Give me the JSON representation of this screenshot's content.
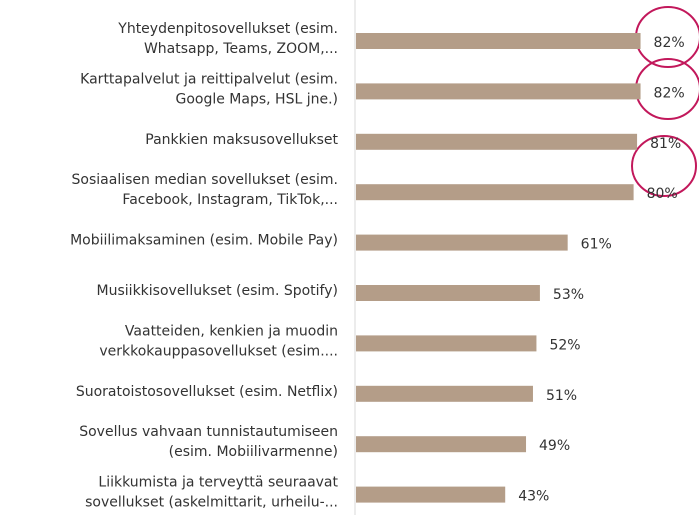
{
  "chart_data": {
    "type": "bar",
    "orientation": "horizontal",
    "color": "#b49d88",
    "categories": [
      [
        "Yhteydenpitosovellukset (esim.",
        "Whatsapp, Teams, ZOOM,..."
      ],
      [
        "Karttapalvelut ja reittipalvelut (esim.",
        "Google Maps, HSL jne.)"
      ],
      [
        "Pankkien maksusovellukset"
      ],
      [
        "Sosiaalisen median sovellukset (esim.",
        "Facebook, Instagram, TikTok,..."
      ],
      [
        "Mobiilimaksaminen (esim. Mobile Pay)"
      ],
      [
        "Musiikkisovellukset (esim. Spotify)"
      ],
      [
        "Vaatteiden, kenkien ja muodin",
        "verkkokauppasovellukset (esim...."
      ],
      [
        "Suoratoistosovellukset (esim. Netflix)"
      ],
      [
        "Sovellus vahvaan tunnistautumiseen",
        "(esim. Mobiilivarmenne)"
      ],
      [
        "Liikkumista ja terveyttä seuraavat",
        "sovellukset (askelmittarit, urheilu-..."
      ]
    ],
    "values": [
      82,
      82,
      81,
      80,
      61,
      53,
      52,
      51,
      49,
      43
    ],
    "value_labels": [
      "82%",
      "82%",
      "81%",
      "80%",
      "61%",
      "53%",
      "52%",
      "51%",
      "49%",
      "43%"
    ]
  }
}
